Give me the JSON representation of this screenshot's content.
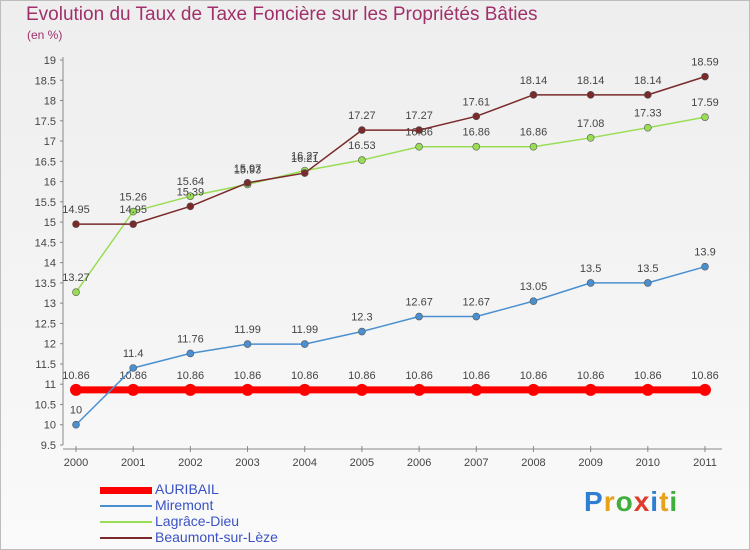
{
  "title": "Evolution du Taux de Taxe Foncière sur les Propriétés Bâties",
  "subtitle": "(en %)",
  "logo": {
    "letters": [
      "P",
      "r",
      "o",
      "x",
      "i",
      "t",
      "i"
    ],
    "colors": [
      "#2e7fd1",
      "#e8a21a",
      "#3fae3a",
      "#e03b2a",
      "#2e7fd1",
      "#e8a21a",
      "#3fae3a"
    ]
  },
  "chart_data": {
    "type": "line",
    "title": "Evolution du Taux de Taxe Foncière sur les Propriétés Bâties",
    "ylabel": "(en %)",
    "x": [
      "2000",
      "2001",
      "2002",
      "2003",
      "2004",
      "2005",
      "2006",
      "2007",
      "2008",
      "2009",
      "2010",
      "2011"
    ],
    "ylim": [
      9.5,
      19
    ],
    "yticks": [
      "9.5",
      "10",
      "10.5",
      "11",
      "11.5",
      "12",
      "12.5",
      "13",
      "13.5",
      "14",
      "14.5",
      "15",
      "15.5",
      "16",
      "16.5",
      "17",
      "17.5",
      "18",
      "18.5",
      "19"
    ],
    "grid": false,
    "legend": "bottom-left",
    "series": [
      {
        "name": "AURIBAIL",
        "color": "#ff0000",
        "values": [
          10.86,
          10.86,
          10.86,
          10.86,
          10.86,
          10.86,
          10.86,
          10.86,
          10.86,
          10.86,
          10.86,
          10.86
        ],
        "labels": [
          "10.86",
          "10.86",
          "10.86",
          "10.86",
          "10.86",
          "10.86",
          "10.86",
          "10.86",
          "10.86",
          "10.86",
          "10.86",
          "10.86"
        ]
      },
      {
        "name": "Miremont",
        "color": "#4a90d0",
        "values": [
          10,
          11.4,
          11.76,
          11.99,
          11.99,
          12.3,
          12.67,
          12.67,
          13.05,
          13.5,
          13.5,
          13.9
        ],
        "labels": [
          "10",
          "11.4",
          "11.76",
          "11.99",
          "11.99",
          "12.3",
          "12.67",
          "12.67",
          "13.05",
          "13.5",
          "13.5",
          "13.9"
        ]
      },
      {
        "name": "Lagrâce-Dieu",
        "color": "#99dd55",
        "values": [
          13.27,
          15.26,
          15.64,
          15.93,
          16.27,
          16.53,
          16.86,
          16.86,
          16.86,
          17.08,
          17.33,
          17.59
        ],
        "labels": [
          "13.27",
          "15.26",
          "15.64",
          "15.93",
          "16.27",
          "16.53",
          "16.86",
          "16.86",
          "16.86",
          "17.08",
          "17.33",
          "17.59"
        ]
      },
      {
        "name": "Beaumont-sur-Lèze",
        "color": "#7a2a2a",
        "values": [
          14.95,
          14.95,
          15.39,
          15.97,
          16.21,
          17.27,
          17.27,
          17.61,
          18.14,
          18.14,
          18.14,
          18.59
        ],
        "labels": [
          "14.95",
          "14.95",
          "15.39",
          "15.97",
          "16.21",
          "17.27",
          "17.27",
          "17.61",
          "18.14",
          "18.14",
          "18.14",
          "18.59"
        ]
      }
    ]
  }
}
